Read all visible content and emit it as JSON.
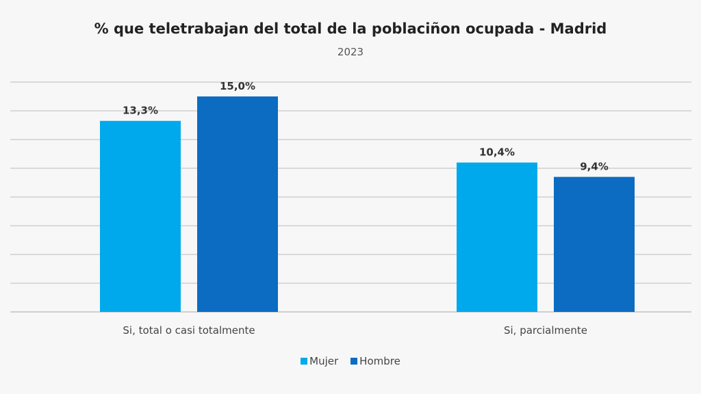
{
  "chart_data": {
    "type": "bar",
    "title": "% que teletrabajan del total de la poblaciñon ocupada - Madrid",
    "subtitle": "2023",
    "categories": [
      "Si, total o casi totalmente",
      "Si, parcialmente"
    ],
    "series": [
      {
        "name": "Mujer",
        "values": [
          13.3,
          10.4
        ],
        "labels": [
          "13,3%",
          "10,4%"
        ],
        "color": "#00a9ec"
      },
      {
        "name": "Hombre",
        "values": [
          15.0,
          9.4
        ],
        "labels": [
          "15,0%",
          "9,4%"
        ],
        "color": "#0b6cc2"
      }
    ],
    "xlabel": "",
    "ylabel": "",
    "ylim": [
      0,
      16
    ],
    "grid": true,
    "gridline_step": 2,
    "y_tick_labels_visible": false,
    "legend": "bottom"
  }
}
